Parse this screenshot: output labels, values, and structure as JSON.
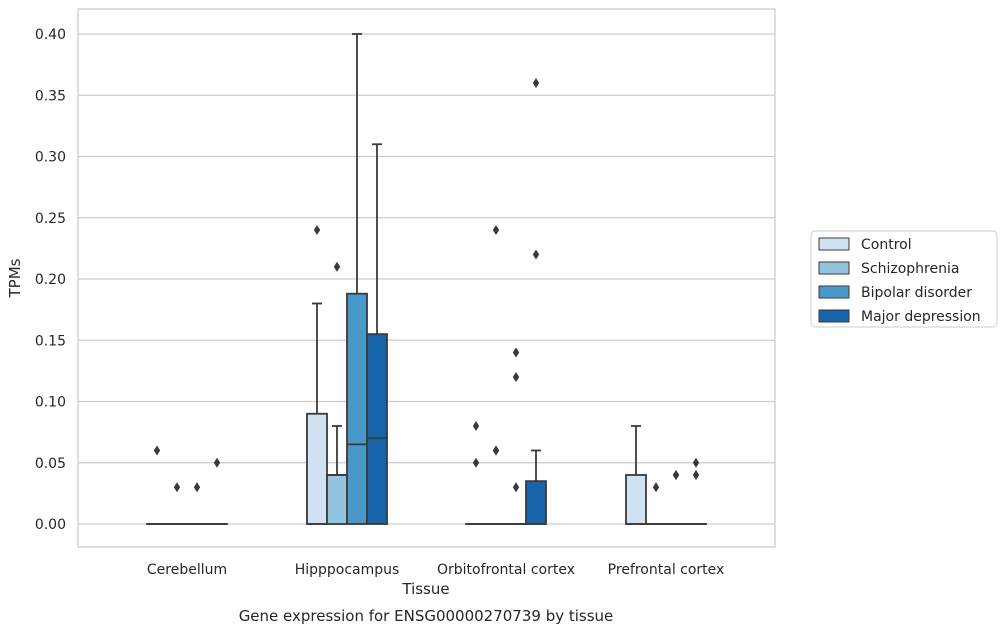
{
  "chart_data": {
    "type": "box",
    "title": "",
    "caption": "Gene expression for ENSG00000270739 by tissue",
    "xlabel": "Tissue",
    "ylabel": "TPMs",
    "ylim": [
      -0.02,
      0.42
    ],
    "yticks": [
      0.0,
      0.05,
      0.1,
      0.15,
      0.2,
      0.25,
      0.3,
      0.35,
      0.4
    ],
    "ytick_labels": [
      "0.00",
      "0.05",
      "0.10",
      "0.15",
      "0.20",
      "0.25",
      "0.30",
      "0.35",
      "0.40"
    ],
    "grid": true,
    "legend_position": "right",
    "categories": [
      "Cerebellum",
      "Hipppocampus",
      "Orbitofrontal cortex",
      "Prefrontal cortex"
    ],
    "series": [
      {
        "name": "Control",
        "color": "#d0e1f2",
        "boxes": [
          {
            "q1": 0.0,
            "median": 0.0,
            "q3": 0.0,
            "whisker_low": 0.0,
            "whisker_high": 0.0,
            "outliers": [
              0.06
            ]
          },
          {
            "q1": 0.0,
            "median": 0.0,
            "q3": 0.09,
            "whisker_low": 0.0,
            "whisker_high": 0.18,
            "outliers": [
              0.24
            ]
          },
          {
            "q1": 0.0,
            "median": 0.0,
            "q3": 0.0,
            "whisker_low": 0.0,
            "whisker_high": 0.0,
            "outliers": [
              0.05,
              0.08
            ]
          },
          {
            "q1": 0.0,
            "median": 0.0,
            "q3": 0.04,
            "whisker_low": 0.0,
            "whisker_high": 0.08,
            "outliers": []
          }
        ]
      },
      {
        "name": "Schizophrenia",
        "color": "#94c4df",
        "boxes": [
          {
            "q1": 0.0,
            "median": 0.0,
            "q3": 0.0,
            "whisker_low": 0.0,
            "whisker_high": 0.0,
            "outliers": [
              0.03
            ]
          },
          {
            "q1": 0.0,
            "median": 0.04,
            "q3": 0.04,
            "whisker_low": 0.0,
            "whisker_high": 0.08,
            "outliers": [
              0.21
            ]
          },
          {
            "q1": 0.0,
            "median": 0.0,
            "q3": 0.0,
            "whisker_low": 0.0,
            "whisker_high": 0.0,
            "outliers": [
              0.06,
              0.06,
              0.24
            ]
          },
          {
            "q1": 0.0,
            "median": 0.0,
            "q3": 0.0,
            "whisker_low": 0.0,
            "whisker_high": 0.0,
            "outliers": [
              0.03
            ]
          }
        ]
      },
      {
        "name": "Bipolar disorder",
        "color": "#4a98c9",
        "boxes": [
          {
            "q1": 0.0,
            "median": 0.0,
            "q3": 0.0,
            "whisker_low": 0.0,
            "whisker_high": 0.0,
            "outliers": [
              0.03
            ]
          },
          {
            "q1": 0.0,
            "median": 0.065,
            "q3": 0.188,
            "whisker_low": 0.0,
            "whisker_high": 0.4,
            "outliers": []
          },
          {
            "q1": 0.0,
            "median": 0.0,
            "q3": 0.0,
            "whisker_low": 0.0,
            "whisker_high": 0.0,
            "outliers": [
              0.03,
              0.12,
              0.14
            ]
          },
          {
            "q1": 0.0,
            "median": 0.0,
            "q3": 0.0,
            "whisker_low": 0.0,
            "whisker_high": 0.0,
            "outliers": [
              0.04,
              0.04
            ]
          }
        ]
      },
      {
        "name": "Major depression",
        "color": "#1764ab",
        "boxes": [
          {
            "q1": 0.0,
            "median": 0.0,
            "q3": 0.0,
            "whisker_low": 0.0,
            "whisker_high": 0.0,
            "outliers": [
              0.05
            ]
          },
          {
            "q1": 0.0,
            "median": 0.07,
            "q3": 0.155,
            "whisker_low": 0.0,
            "whisker_high": 0.31,
            "outliers": []
          },
          {
            "q1": 0.0,
            "median": 0.0,
            "q3": 0.035,
            "whisker_low": 0.0,
            "whisker_high": 0.06,
            "outliers": [
              0.22,
              0.36
            ]
          },
          {
            "q1": 0.0,
            "median": 0.0,
            "q3": 0.0,
            "whisker_low": 0.0,
            "whisker_high": 0.0,
            "outliers": [
              0.04,
              0.05
            ]
          }
        ]
      }
    ]
  }
}
